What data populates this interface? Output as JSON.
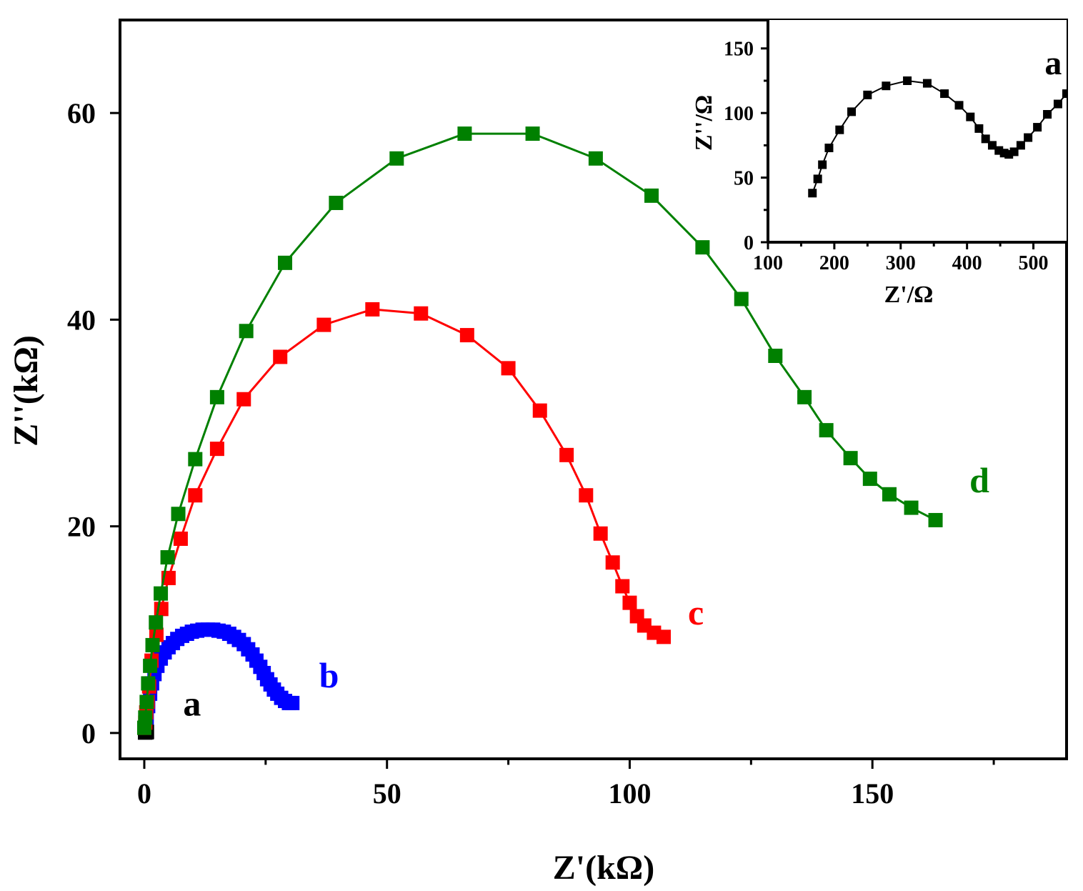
{
  "chart_data": [
    {
      "type": "scatter",
      "xlabel": "Z'(kΩ)",
      "ylabel": "Z''(kΩ)",
      "xlim": [
        -5,
        190
      ],
      "ylim": [
        -2.5,
        69
      ],
      "xticks": [
        0,
        50,
        100,
        150
      ],
      "yticks": [
        0,
        20,
        40,
        60
      ],
      "legend": "none",
      "grid": false,
      "series": [
        {
          "name": "a",
          "color": "#000000",
          "line": false,
          "marker_size": 20,
          "label": "a",
          "label_at": [
            8,
            1.7
          ],
          "x": [
            0.17,
            0.18,
            0.19,
            0.2,
            0.22,
            0.25,
            0.28,
            0.31,
            0.34,
            0.37,
            0.4,
            0.43,
            0.46,
            0.49,
            0.52,
            0.55
          ],
          "y": [
            0.04,
            0.05,
            0.06,
            0.07,
            0.09,
            0.11,
            0.12,
            0.125,
            0.12,
            0.11,
            0.09,
            0.07,
            0.068,
            0.08,
            0.1,
            0.115
          ]
        },
        {
          "name": "b",
          "color": "#0000FF",
          "line": true,
          "marker_size": 20,
          "label": "b",
          "label_at": [
            36,
            4.4
          ],
          "x": [
            0.5,
            0.8,
            1.2,
            1.6,
            2.1,
            2.7,
            3.4,
            4.2,
            5.0,
            5.9,
            6.8,
            7.8,
            8.8,
            9.8,
            10.9,
            12.0,
            13.1,
            14.2,
            15.3,
            16.4,
            17.5,
            18.5,
            19.5,
            20.5,
            21.4,
            22.3,
            23.1,
            23.9,
            24.6,
            25.3,
            26.0,
            26.7,
            27.4,
            28.2,
            29.0,
            29.8,
            30.5
          ],
          "y": [
            1.5,
            2.6,
            3.8,
            4.8,
            5.7,
            6.5,
            7.2,
            7.8,
            8.3,
            8.7,
            9.1,
            9.4,
            9.6,
            9.8,
            9.9,
            10.0,
            10.0,
            10.0,
            9.9,
            9.8,
            9.6,
            9.3,
            9.0,
            8.6,
            8.1,
            7.6,
            7.0,
            6.4,
            5.8,
            5.2,
            4.7,
            4.2,
            3.8,
            3.4,
            3.1,
            2.9,
            2.9
          ]
        },
        {
          "name": "c",
          "color": "#FF0000",
          "line": true,
          "marker_size": 20,
          "label": "c",
          "label_at": [
            112,
            10.5
          ],
          "x": [
            0.0,
            0.2,
            0.4,
            0.7,
            1.0,
            1.5,
            2.5,
            3.5,
            5.0,
            7.5,
            10.5,
            15.0,
            20.5,
            28.0,
            37.0,
            47.0,
            57.0,
            66.5,
            75.0,
            81.5,
            87.0,
            91.0,
            94.0,
            96.5,
            98.5,
            100.0,
            101.5,
            103.0,
            105.0,
            107.0
          ],
          "y": [
            0.5,
            1.0,
            2.0,
            3.0,
            4.5,
            7.0,
            9.5,
            12.0,
            15.0,
            18.8,
            23.0,
            27.5,
            32.3,
            36.4,
            39.5,
            41.0,
            40.6,
            38.5,
            35.3,
            31.2,
            26.9,
            23.0,
            19.3,
            16.5,
            14.2,
            12.6,
            11.3,
            10.4,
            9.7,
            9.3
          ]
        },
        {
          "name": "d",
          "color": "#008000",
          "line": true,
          "marker_size": 20,
          "label": "d",
          "label_at": [
            170,
            23.3
          ],
          "x": [
            0.0,
            0.2,
            0.5,
            0.8,
            1.2,
            1.7,
            2.4,
            3.4,
            4.8,
            7.0,
            10.5,
            15.0,
            21.0,
            29.0,
            39.5,
            52.0,
            66.0,
            80.0,
            93.0,
            104.5,
            115.0,
            123.0,
            130.0,
            136.0,
            140.5,
            145.5,
            149.5,
            153.5,
            158.0,
            163.0
          ],
          "y": [
            0.5,
            1.5,
            3.0,
            4.8,
            6.5,
            8.5,
            10.7,
            13.5,
            17.0,
            21.2,
            26.5,
            32.5,
            38.9,
            45.5,
            51.3,
            55.6,
            58.0,
            58.0,
            55.6,
            52.0,
            47.0,
            42.0,
            36.5,
            32.5,
            29.3,
            26.6,
            24.6,
            23.1,
            21.8,
            20.6
          ]
        }
      ]
    },
    {
      "type": "scatter",
      "inset": true,
      "xlabel": "Z'/Ω",
      "ylabel": "Z''/Ω",
      "xlim": [
        100,
        550
      ],
      "ylim": [
        0,
        172
      ],
      "xticks": [
        100,
        200,
        300,
        400,
        500
      ],
      "yticks": [
        0,
        50,
        100,
        150
      ],
      "legend": "none",
      "grid": false,
      "series": [
        {
          "name": "a",
          "color": "#000000",
          "line": true,
          "marker_size": 12,
          "label": "a",
          "label_at": [
            517,
            130
          ],
          "x": [
            167,
            175,
            182,
            192,
            208,
            226,
            250,
            278,
            310,
            340,
            366,
            388,
            405,
            418,
            428,
            438,
            448,
            456,
            463,
            471,
            481,
            492,
            506,
            521,
            537,
            550
          ],
          "y": [
            38,
            49,
            60,
            73,
            87,
            101,
            114,
            121,
            125,
            123,
            115,
            106,
            97,
            88,
            80,
            75,
            71,
            69,
            68,
            70,
            75,
            81,
            89,
            99,
            107,
            115
          ]
        }
      ]
    }
  ]
}
